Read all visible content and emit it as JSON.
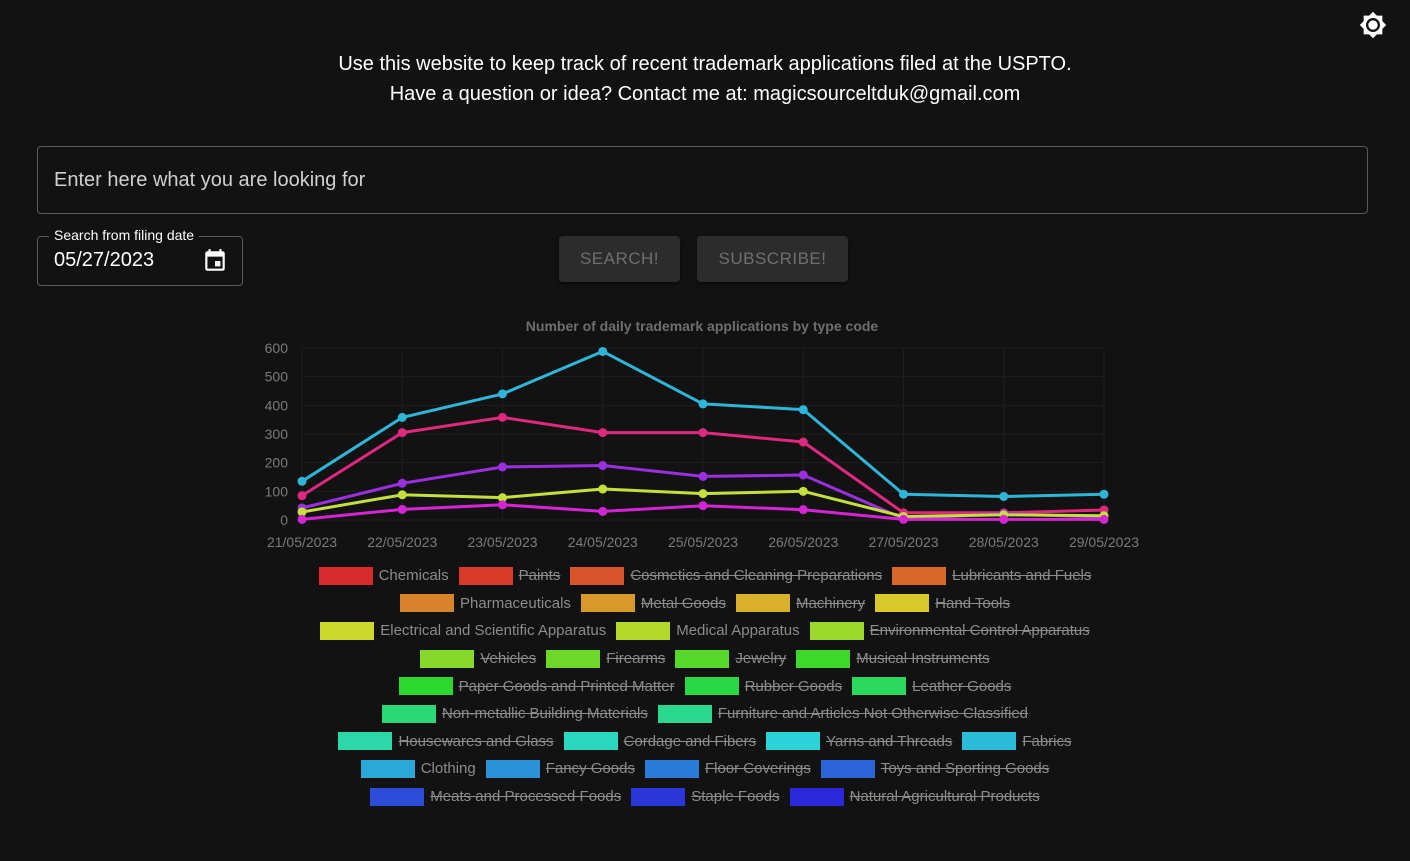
{
  "header": {
    "intro_line1": "Use this website to keep track of recent trademark applications filed at the USPTO.",
    "intro_line2": "Have a question or idea? Contact me at: magicsourceltduk@gmail.com",
    "theme_icon": "brightness-icon"
  },
  "search": {
    "placeholder": "Enter here what you are looking for",
    "value": ""
  },
  "date_filter": {
    "label": "Search from filing date",
    "value": "05/27/2023",
    "icon": "calendar-icon"
  },
  "buttons": {
    "search_label": "SEARCH!",
    "subscribe_label": "SUBSCRIBE!"
  },
  "chart_data": {
    "type": "line",
    "title": "Number of daily trademark applications by type code",
    "x": [
      "21/05/2023",
      "22/05/2023",
      "23/05/2023",
      "24/05/2023",
      "25/05/2023",
      "26/05/2023",
      "27/05/2023",
      "28/05/2023",
      "29/05/2023"
    ],
    "ylim": [
      0,
      600
    ],
    "yticks": [
      0,
      100,
      200,
      300,
      400,
      500,
      600
    ],
    "grid": false,
    "legend_placement": "bottom",
    "series": [
      {
        "name": "Clothing",
        "color": "#2eb6d8",
        "values": [
          135,
          358,
          440,
          588,
          405,
          385,
          90,
          82,
          90
        ]
      },
      {
        "name": "Pharmaceuticals",
        "color": "#e0287f",
        "values": [
          85,
          305,
          358,
          305,
          305,
          272,
          25,
          25,
          35
        ]
      },
      {
        "name": "Electrical and Scientific Apparatus",
        "color": "#9a2fe0",
        "values": [
          42,
          128,
          185,
          190,
          152,
          157,
          5,
          22,
          10
        ]
      },
      {
        "name": "Medical Apparatus",
        "color": "#c4e03a",
        "values": [
          28,
          88,
          78,
          108,
          92,
          100,
          12,
          18,
          15
        ]
      },
      {
        "name": "Chemicals",
        "color": "#d425d4",
        "values": [
          2,
          37,
          53,
          30,
          50,
          36,
          2,
          2,
          2
        ]
      }
    ]
  },
  "legend": {
    "rows": [
      [
        {
          "label": "Chemicals",
          "color": "#d8292b",
          "hidden": false
        },
        {
          "label": "Paints",
          "color": "#d83a2a",
          "hidden": true
        },
        {
          "label": "Cosmetics and Cleaning Preparations",
          "color": "#d8542a",
          "hidden": true
        },
        {
          "label": "Lubricants and Fuels",
          "color": "#d8682a",
          "hidden": true
        }
      ],
      [
        {
          "label": "Pharmaceuticals",
          "color": "#d8822a",
          "hidden": false
        },
        {
          "label": "Metal Goods",
          "color": "#d8982a",
          "hidden": true
        },
        {
          "label": "Machinery",
          "color": "#d8b02a",
          "hidden": true
        },
        {
          "label": "Hand Tools",
          "color": "#d8c82a",
          "hidden": true
        }
      ],
      [
        {
          "label": "Electrical and Scientific Apparatus",
          "color": "#ccd82a",
          "hidden": false
        },
        {
          "label": "Medical Apparatus",
          "color": "#b4d82a",
          "hidden": false
        },
        {
          "label": "Environmental Control Apparatus",
          "color": "#9cd82a",
          "hidden": true
        }
      ],
      [
        {
          "label": "Vehicles",
          "color": "#86d82a",
          "hidden": true
        },
        {
          "label": "Firearms",
          "color": "#6ed82a",
          "hidden": true
        },
        {
          "label": "Jewelry",
          "color": "#56d82a",
          "hidden": true
        },
        {
          "label": "Musical Instruments",
          "color": "#3ed82a",
          "hidden": true
        }
      ],
      [
        {
          "label": "Paper Goods and Printed Matter",
          "color": "#2ad82e",
          "hidden": true
        },
        {
          "label": "Rubber Goods",
          "color": "#2ad846",
          "hidden": true
        },
        {
          "label": "Leather Goods",
          "color": "#2ad85e",
          "hidden": true
        }
      ],
      [
        {
          "label": "Non-metallic Building Materials",
          "color": "#2ad876",
          "hidden": true
        },
        {
          "label": "Furniture and Articles Not Otherwise Classified",
          "color": "#2ad88e",
          "hidden": true
        }
      ],
      [
        {
          "label": "Housewares and Glass",
          "color": "#2ad8a8",
          "hidden": true
        },
        {
          "label": "Cordage and Fibers",
          "color": "#2ad8c0",
          "hidden": true
        },
        {
          "label": "Yarns and Threads",
          "color": "#2ad4d8",
          "hidden": true
        },
        {
          "label": "Fabrics",
          "color": "#2abcd8",
          "hidden": true
        }
      ],
      [
        {
          "label": "Clothing",
          "color": "#2aa8d8",
          "hidden": false
        },
        {
          "label": "Fancy Goods",
          "color": "#2a92d8",
          "hidden": true
        },
        {
          "label": "Floor Coverings",
          "color": "#2a7ad8",
          "hidden": true
        },
        {
          "label": "Toys and Sporting Goods",
          "color": "#2a64d8",
          "hidden": true
        }
      ],
      [
        {
          "label": "Meats and Processed Foods",
          "color": "#2a4cd8",
          "hidden": true
        },
        {
          "label": "Staple Foods",
          "color": "#2a36d8",
          "hidden": true
        },
        {
          "label": "Natural Agricultural Products",
          "color": "#2a28d8",
          "hidden": true
        }
      ]
    ]
  }
}
